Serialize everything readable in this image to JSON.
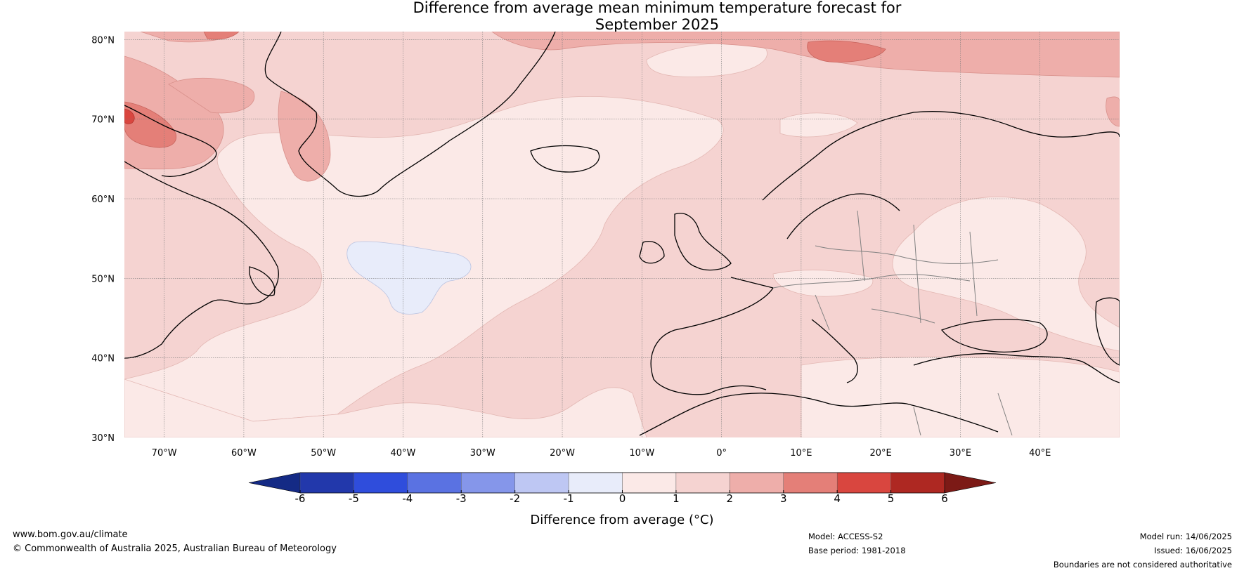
{
  "title": {
    "line1": "Difference from average mean minimum temperature forecast for",
    "line2": "September 2025"
  },
  "map": {
    "lat_labels": [
      "80°N",
      "70°N",
      "60°N",
      "50°N",
      "40°N",
      "30°N"
    ],
    "lon_labels": [
      "70°W",
      "60°W",
      "50°W",
      "40°W",
      "30°W",
      "20°W",
      "10°W",
      "0°",
      "10°E",
      "20°E",
      "30°E",
      "40°E"
    ],
    "lat_range": [
      30,
      81
    ],
    "lon_range": [
      -75,
      50
    ],
    "background_anomaly_colors": {
      "-1_0": "#e8ecfa",
      "0_1": "#fbe9e7",
      "1_2": "#f5d3d1",
      "2_3": "#eeaeaa",
      "3_4": "#e47f78",
      "4_5": "#d9463f"
    }
  },
  "colorbar": {
    "title": "Difference from average (°C)",
    "tick_labels": [
      "-6",
      "-5",
      "-4",
      "-3",
      "-2",
      "-1",
      "0",
      "1",
      "2",
      "3",
      "4",
      "5",
      "6"
    ],
    "colors": [
      "#142a85",
      "#2238ab",
      "#2f4ddc",
      "#5a72e2",
      "#8596ea",
      "#bec7f3",
      "#e8ecfa",
      "#fbe9e7",
      "#f5d3d1",
      "#eeaeaa",
      "#e47f78",
      "#d9463f",
      "#ae2822",
      "#7c1a16"
    ]
  },
  "footer": {
    "website": "www.bom.gov.au/climate",
    "copyright": "© Commonwealth of Australia 2025, Australian Bureau of Meteorology",
    "model": "Model: ACCESS-S2",
    "base_period": "Base period: 1981-2018",
    "model_run": "Model run: 14/06/2025",
    "issued": "Issued: 16/06/2025",
    "disclaimer": "Boundaries are not considered authoritative"
  }
}
